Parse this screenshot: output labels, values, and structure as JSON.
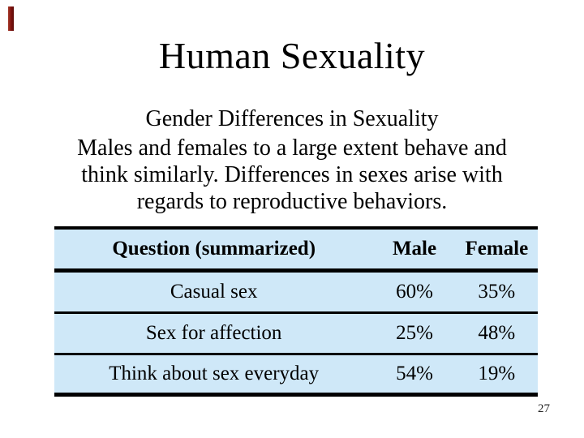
{
  "slide": {
    "title": "Human Sexuality",
    "subtitle": "Gender Differences in Sexuality",
    "body_lines": [
      "Males and females to a large extent behave and",
      "think similarly. Differences in sexes arise with",
      "regards to reproductive behaviors."
    ],
    "page_number": "27",
    "colors": {
      "accent_bar": "#7c100d",
      "table_fill": "#cfe8f8",
      "table_rules": "#000000",
      "text": "#000000"
    },
    "table": {
      "header": [
        "Question (summarized)",
        "Male",
        "Female"
      ],
      "rows": [
        {
          "question": "Casual sex",
          "male": "60%",
          "female": "35%"
        },
        {
          "question": "Sex for affection",
          "male": "25%",
          "female": "48%"
        },
        {
          "question": "Think about sex everyday",
          "male": "54%",
          "female": "19%"
        }
      ]
    }
  }
}
